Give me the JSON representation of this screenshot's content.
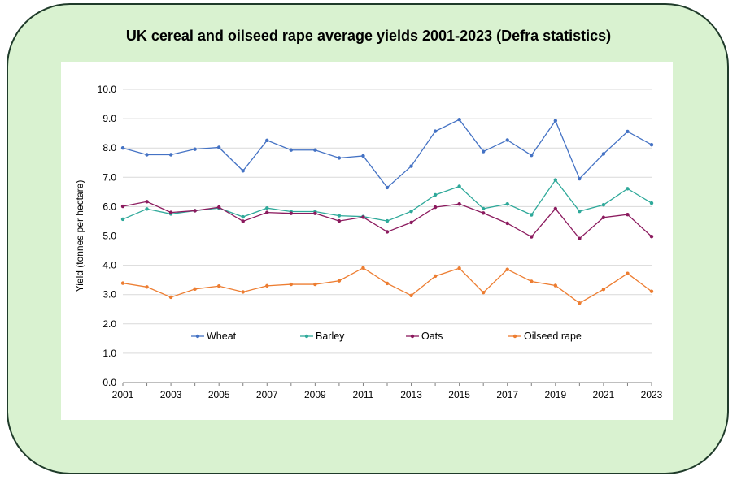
{
  "colors": {
    "frame_bg": "#d9f2d0",
    "frame_border": "#1f3b2a",
    "grid": "#d9d9d9",
    "axis": "#7f7f7f"
  },
  "chart_data": {
    "type": "line",
    "title": "UK cereal and oilseed rape average yields 2001-2023 (Defra statistics)",
    "xlabel": "",
    "ylabel": "Yield (tonnes per hectare)",
    "ylim": [
      0,
      10
    ],
    "xlim": [
      2001,
      2023
    ],
    "grid": true,
    "legend_position": "bottom-inside",
    "x": [
      2001,
      2002,
      2003,
      2004,
      2005,
      2006,
      2007,
      2008,
      2009,
      2010,
      2011,
      2012,
      2013,
      2014,
      2015,
      2016,
      2017,
      2018,
      2019,
      2020,
      2021,
      2022,
      2023
    ],
    "x_tick_labels": [
      "2001",
      "2003",
      "2005",
      "2007",
      "2009",
      "2011",
      "2013",
      "2015",
      "2017",
      "2019",
      "2021",
      "2023"
    ],
    "y_tick_labels": [
      "0.0",
      "1.0",
      "2.0",
      "3.0",
      "4.0",
      "5.0",
      "6.0",
      "7.0",
      "8.0",
      "9.0",
      "10.0"
    ],
    "series": [
      {
        "name": "Wheat",
        "color": "#4472c4",
        "values": [
          8.0,
          7.77,
          7.77,
          7.96,
          8.02,
          7.22,
          8.26,
          7.93,
          7.93,
          7.66,
          7.73,
          6.65,
          7.38,
          8.57,
          8.97,
          7.88,
          8.27,
          7.75,
          8.93,
          6.95,
          7.8,
          8.56,
          8.11
        ]
      },
      {
        "name": "Barley",
        "color": "#2fa99a",
        "values": [
          5.57,
          5.92,
          5.75,
          5.86,
          5.95,
          5.65,
          5.95,
          5.83,
          5.83,
          5.69,
          5.66,
          5.51,
          5.84,
          6.4,
          6.69,
          5.93,
          6.09,
          5.72,
          6.91,
          5.84,
          6.06,
          6.61,
          6.12
        ]
      },
      {
        "name": "Oats",
        "color": "#8b1a5e",
        "values": [
          6.01,
          6.17,
          5.8,
          5.86,
          5.98,
          5.5,
          5.8,
          5.77,
          5.77,
          5.51,
          5.64,
          5.14,
          5.46,
          5.98,
          6.09,
          5.78,
          5.43,
          4.97,
          5.93,
          4.91,
          5.63,
          5.73,
          4.98
        ]
      },
      {
        "name": "Oilseed rape",
        "color": "#ed7d31",
        "values": [
          3.39,
          3.26,
          2.91,
          3.19,
          3.29,
          3.09,
          3.3,
          3.35,
          3.35,
          3.47,
          3.91,
          3.38,
          2.97,
          3.63,
          3.9,
          3.07,
          3.86,
          3.45,
          3.31,
          2.71,
          3.18,
          3.72,
          3.11
        ]
      }
    ]
  }
}
